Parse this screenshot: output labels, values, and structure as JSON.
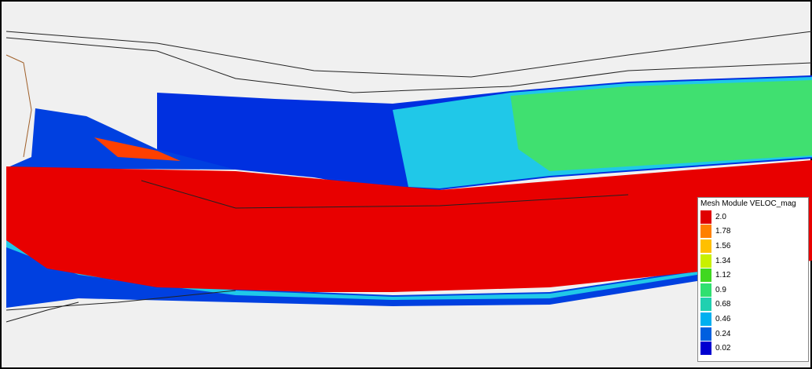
{
  "legend": {
    "title": "Mesh Module VELOC_mag",
    "entries": [
      {
        "label": "2.0",
        "color": "#e00000"
      },
      {
        "label": "1.78",
        "color": "#ff8000"
      },
      {
        "label": "1.56",
        "color": "#ffc000"
      },
      {
        "label": "1.34",
        "color": "#c8f000"
      },
      {
        "label": "1.12",
        "color": "#40d820"
      },
      {
        "label": "0.9",
        "color": "#30e070"
      },
      {
        "label": "0.68",
        "color": "#20d0b0"
      },
      {
        "label": "0.46",
        "color": "#00b0f0"
      },
      {
        "label": "0.24",
        "color": "#0060e0"
      },
      {
        "label": "0.02",
        "color": "#0000d0"
      }
    ]
  }
}
